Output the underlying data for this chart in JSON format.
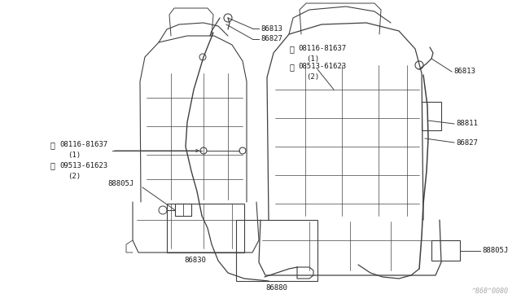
{
  "bg_color": "#ffffff",
  "line_color": "#404040",
  "text_color": "#1a1a1a",
  "watermark": "^868^0080",
  "figsize": [
    6.4,
    3.72
  ],
  "dpi": 100,
  "labels": {
    "86813_top": "86813",
    "86827_top": "86827",
    "B_left": "⒲08116-81637",
    "1_left": "(1)",
    "S_left": "Ⓝ09513-61623",
    "2_left": "(2)",
    "88805J_left": "88805J",
    "86830": "86830",
    "86880": "86880",
    "B_right": "⒲08116-81637",
    "1_right": "(1)",
    "S_right": "Ⓝ08513-61623",
    "2_right": "(2)",
    "86813_right": "86813",
    "88811": "88811",
    "86827_right": "86827",
    "88805J_right": "88805J"
  }
}
